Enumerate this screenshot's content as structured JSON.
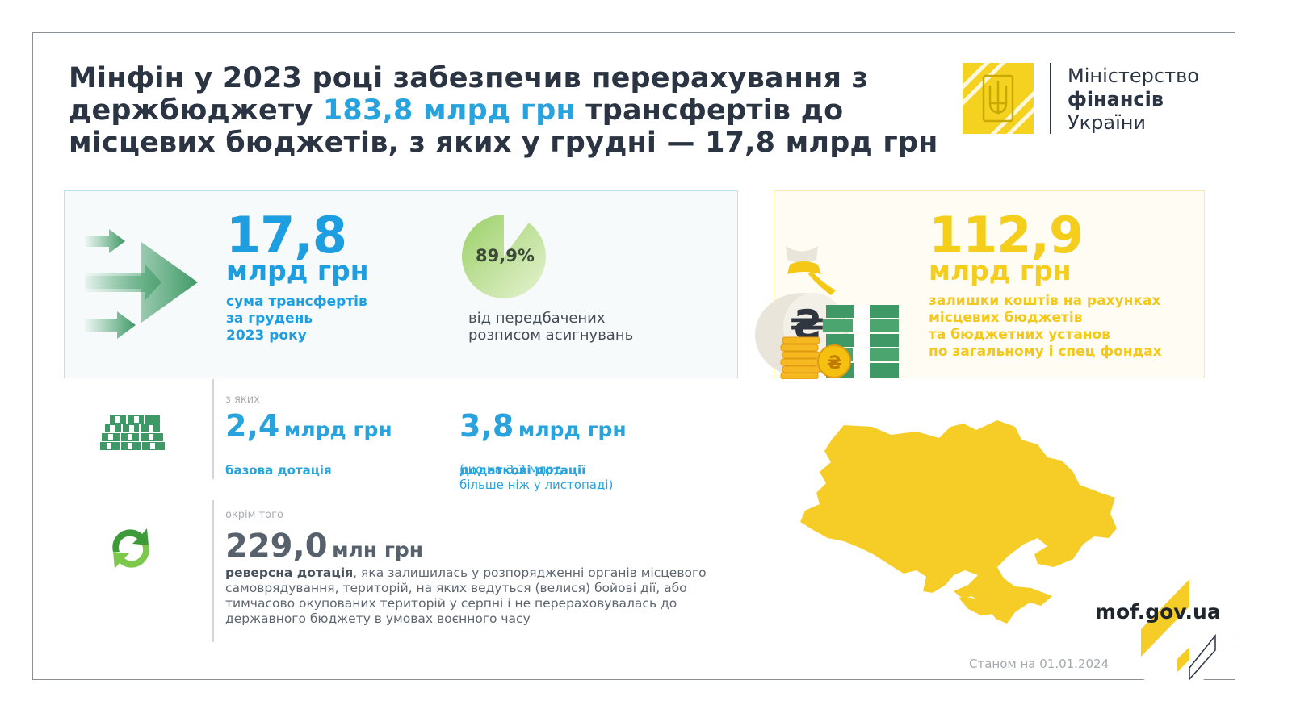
{
  "header": {
    "title_part1": "Мінфін у 2023 році забезпечив перерахування з держбюджету ",
    "title_highlight": "183,8 млрд грн",
    "title_part2": " трансфертів до місцевих бюджетів, з яких у грудні — 17,8 млрд грн"
  },
  "ministry": {
    "line1": "Міністерство",
    "line2": "фінансів",
    "line3": "України"
  },
  "december": {
    "value": "17,8",
    "unit": "млрд грн",
    "description": "сума трансфертів\nза грудень\n2023 року",
    "share_label": "89,9%",
    "share_value": 89.9,
    "share_description": "від передбачених\nрозписом асигнувань"
  },
  "balances": {
    "value": "112,9",
    "unit": "млрд грн",
    "description": "залишки коштів на рахунках\nмісцевих бюджетів\nта бюджетних установ\nпо загальному і спец фондах"
  },
  "of_which": {
    "label": "з яких",
    "base": {
      "value": "2,4",
      "unit": "млрд грн",
      "description": "базова дотація"
    },
    "additional": {
      "value": "3,8",
      "unit": "млрд грн",
      "description": "додаткові дотації",
      "note": "(що на 3,3 млрд\nбільше ніж у листопаді)"
    }
  },
  "besides": {
    "label": "окрім того",
    "value": "229,0",
    "unit": "млн грн",
    "description_bold": "реверсна дотація",
    "description": ", яка залишилась у розпорядженні органів місцевого самоврядування, територій, на яких ведуться (велися) бойові дії, або тимчасово окупованих територій у серпні і не перераховувалась до державного бюджету в умовах воєнного часу"
  },
  "footer": {
    "website": "mof.gov.ua",
    "as_of": "Станом на 01.01.2024"
  },
  "colors": {
    "blue": "#1d9ee0",
    "yellow": "#f5cd1c",
    "green": "#4aa56f",
    "dark": "#2b3442"
  },
  "icons": [
    "green-arrows-icon",
    "money-bag-icon",
    "banknote-stack-icon",
    "recycle-arrows-icon",
    "ukraine-map-icon",
    "trident-logo-icon"
  ]
}
